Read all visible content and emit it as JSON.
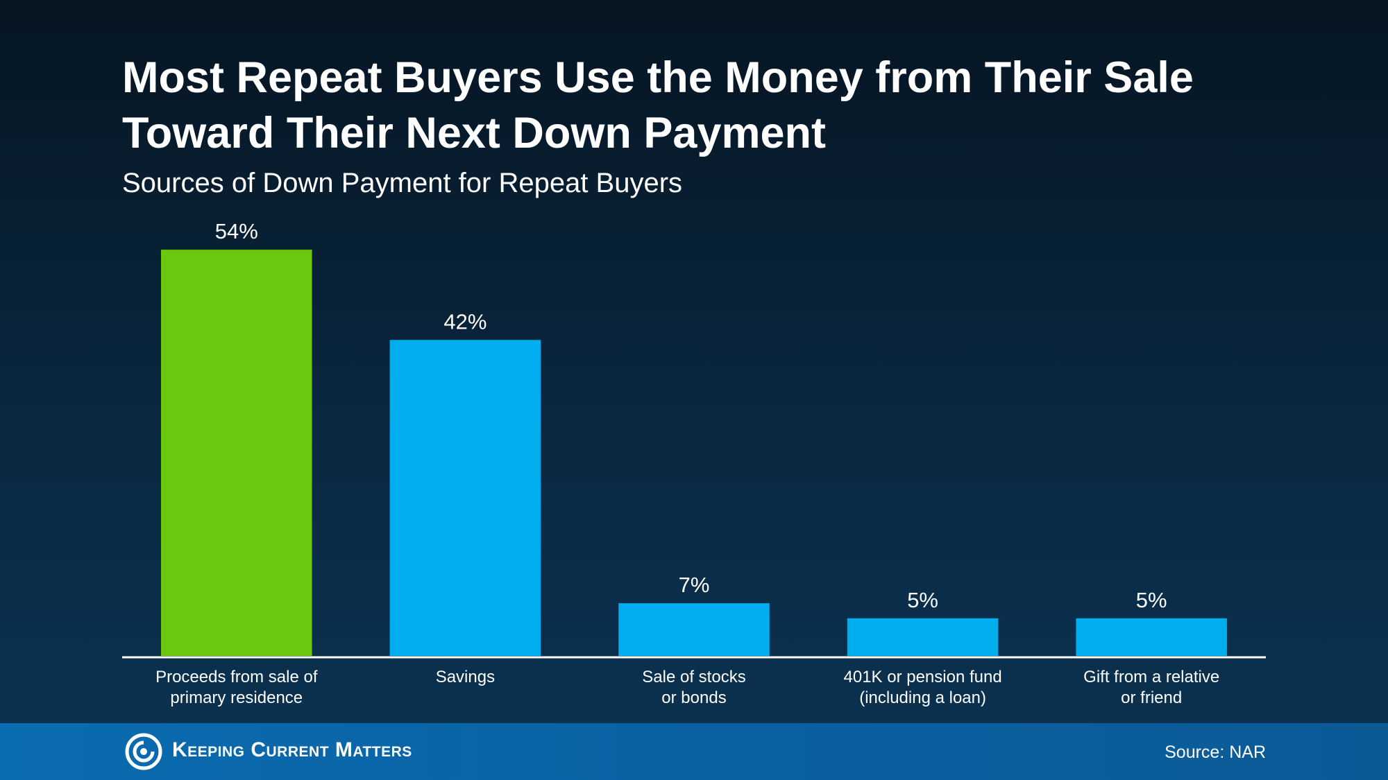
{
  "chart_data": {
    "type": "bar",
    "title": "Most Repeat Buyers Use the Money from Their Sale Toward Their Next Down Payment",
    "subtitle": "Sources of Down Payment for Repeat Buyers",
    "categories": [
      "Proceeds from sale of\nprimary residence",
      "Savings",
      "Sale of stocks\nor bonds",
      "401K or pension fund\n(including a loan)",
      "Gift from a relative\nor friend"
    ],
    "values": [
      54,
      42,
      7,
      5,
      5
    ],
    "value_labels": [
      "54%",
      "42%",
      "7%",
      "5%",
      "5%"
    ],
    "colors": [
      "#6cc70f",
      "#00adee",
      "#00adee",
      "#00adee",
      "#00adee"
    ],
    "ylim": [
      0,
      60
    ],
    "grid": false,
    "source": "Source: NAR"
  },
  "branding": {
    "logo": "Keeping Current Matters"
  }
}
